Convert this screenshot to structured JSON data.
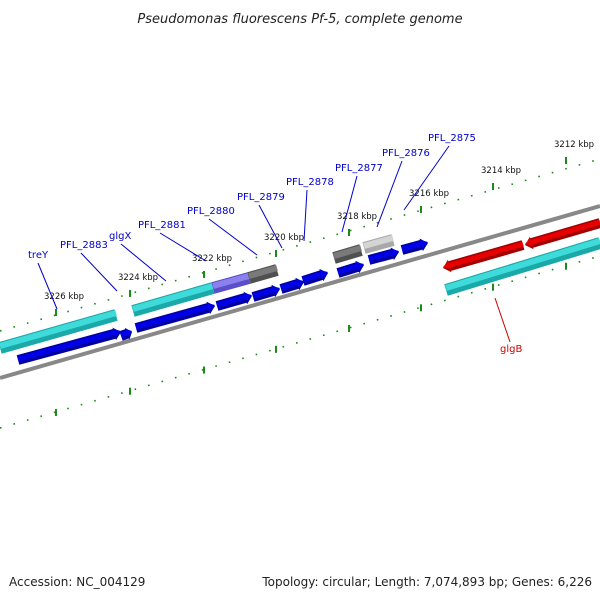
{
  "title": "Pseudomonas fluorescens Pf-5, complete genome",
  "footer": {
    "accession": "Accession: NC_004129",
    "summary": "Topology: circular; Length: 7,074,893 bp; Genes: 6,226"
  },
  "colors": {
    "forward_gene": "#0000e8",
    "highlight_gene": "#e80000",
    "cds_track": "#22c8c8",
    "backbone": "#808080",
    "tick": "#1a8a1a",
    "label_forward": "#0000cc",
    "label_highlight": "#cc0000"
  },
  "ticks": [
    {
      "kbp": 3212,
      "label": "3212 kbp"
    },
    {
      "kbp": 3214,
      "label": "3214 kbp"
    },
    {
      "kbp": 3216,
      "label": "3216 kbp"
    },
    {
      "kbp": 3218,
      "label": "3218 kbp"
    },
    {
      "kbp": 3220,
      "label": "3220 kbp"
    },
    {
      "kbp": 3222,
      "label": "3222 kbp"
    },
    {
      "kbp": 3224,
      "label": "3224 kbp"
    },
    {
      "kbp": 3226,
      "label": "3226 kbp"
    }
  ],
  "genes": [
    {
      "name": "PFL_2875",
      "strand": "forward"
    },
    {
      "name": "PFL_2876",
      "strand": "forward"
    },
    {
      "name": "PFL_2877",
      "strand": "forward"
    },
    {
      "name": "PFL_2878",
      "strand": "forward"
    },
    {
      "name": "PFL_2879",
      "strand": "forward"
    },
    {
      "name": "PFL_2880",
      "strand": "forward"
    },
    {
      "name": "PFL_2881",
      "strand": "forward"
    },
    {
      "name": "glgX",
      "strand": "forward"
    },
    {
      "name": "PFL_2883",
      "strand": "forward"
    },
    {
      "name": "treY",
      "strand": "forward"
    },
    {
      "name": "glgB",
      "strand": "reverse",
      "highlight": true
    }
  ]
}
